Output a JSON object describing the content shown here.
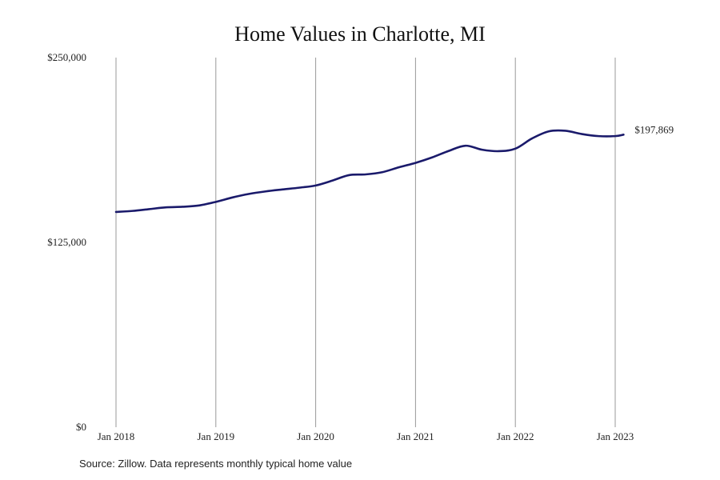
{
  "chart_data": {
    "type": "line",
    "title": "Home Values in Charlotte, MI",
    "source": "Source: Zillow. Data represents monthly typical home value",
    "xlabel": "",
    "ylabel": "",
    "ylim": [
      0,
      250000
    ],
    "y_ticks": [
      0,
      125000,
      250000
    ],
    "y_tick_labels": [
      "$0",
      "$125,000",
      "$250,000"
    ],
    "x_ticks": [
      "Jan 2018",
      "Jan 2019",
      "Jan 2020",
      "Jan 2021",
      "Jan 2022",
      "Jan 2023"
    ],
    "grid": "vertical at each year",
    "end_label": "$197,869",
    "line_color": "#1a1a6b",
    "grid_color": "#999999",
    "series": [
      {
        "x": [
          "2018-01",
          "2018-03",
          "2018-05",
          "2018-07",
          "2018-09",
          "2018-11",
          "2019-01",
          "2019-03",
          "2019-05",
          "2019-07",
          "2019-09",
          "2019-11",
          "2020-01",
          "2020-03",
          "2020-05",
          "2020-07",
          "2020-09",
          "2020-11",
          "2021-01",
          "2021-03",
          "2021-05",
          "2021-07",
          "2021-09",
          "2021-11",
          "2022-01",
          "2022-03",
          "2022-05",
          "2022-07",
          "2022-09",
          "2022-11",
          "2023-01",
          "2023-02"
        ],
        "values": [
          145600,
          146300,
          147500,
          148700,
          149100,
          150000,
          152400,
          155400,
          157800,
          159500,
          160800,
          162000,
          163500,
          166800,
          170500,
          171000,
          172500,
          175800,
          178800,
          182500,
          186900,
          190400,
          187700,
          186700,
          188400,
          195300,
          200100,
          200500,
          198300,
          196900,
          196900,
          197869
        ]
      }
    ]
  }
}
